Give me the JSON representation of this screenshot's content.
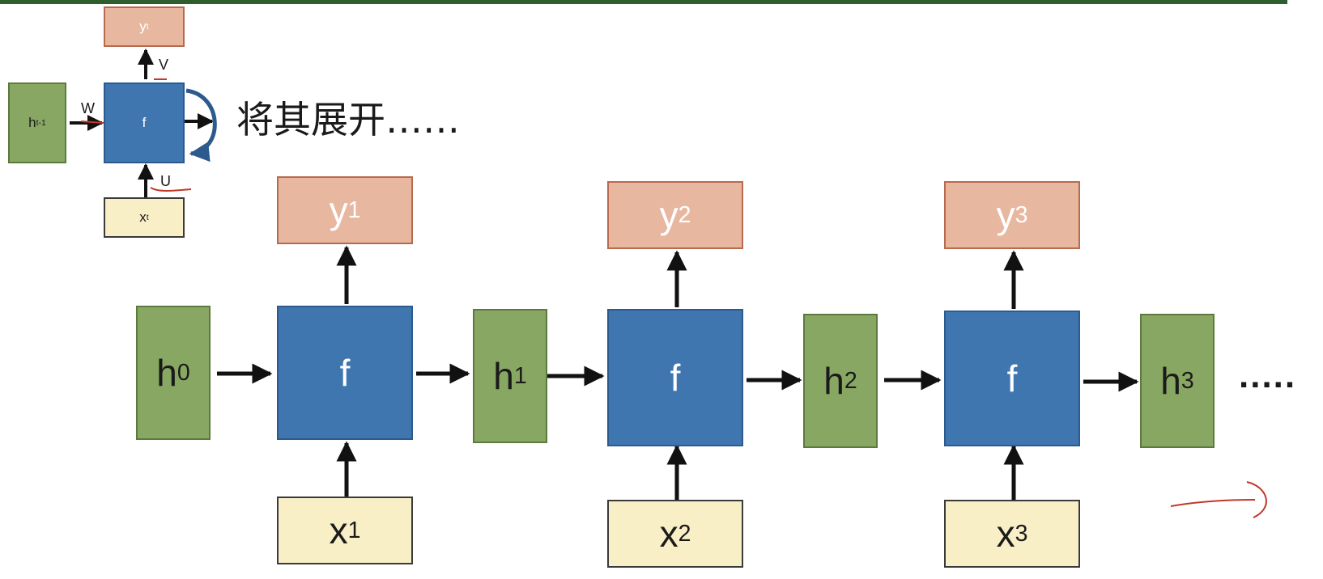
{
  "small_diagram": {
    "y_label": "y",
    "y_sub": "t",
    "h_label": "h",
    "h_sub": "t-1",
    "f_label": "f",
    "x_label": "x",
    "x_sub": "t",
    "v_label": "V",
    "w_label": "W",
    "u_label": "U"
  },
  "caption": "将其展开……",
  "unrolled": {
    "hidden": [
      {
        "label": "h",
        "sub": "0"
      },
      {
        "label": "h",
        "sub": "1"
      },
      {
        "label": "h",
        "sub": "2"
      },
      {
        "label": "h",
        "sub": "3"
      }
    ],
    "cells": [
      {
        "label": "f"
      },
      {
        "label": "f"
      },
      {
        "label": "f"
      }
    ],
    "outputs": [
      {
        "label": "y",
        "sub": "1"
      },
      {
        "label": "y",
        "sub": "2"
      },
      {
        "label": "y",
        "sub": "3"
      }
    ],
    "inputs": [
      {
        "label": "x",
        "sub": "1"
      },
      {
        "label": "x",
        "sub": "2"
      },
      {
        "label": "x",
        "sub": "3"
      }
    ],
    "continuation": "....."
  },
  "colors": {
    "hidden_fill": "#88a763",
    "cell_fill": "#3f76b0",
    "output_fill": "#e8b7a0",
    "input_fill": "#f8efc6",
    "annotation_red": "#c0392b"
  }
}
